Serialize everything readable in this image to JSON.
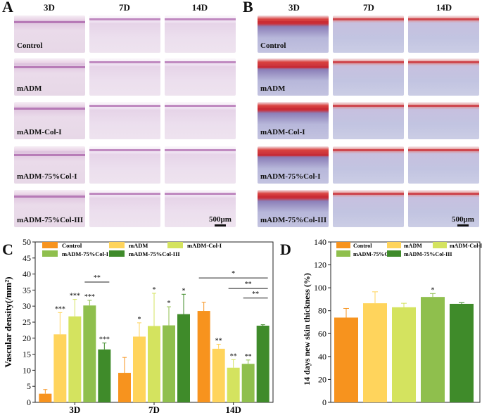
{
  "panels": {
    "a": "A",
    "b": "B",
    "c": "C",
    "d": "D"
  },
  "timepoints": [
    "3D",
    "7D",
    "14D"
  ],
  "groups": [
    "Control",
    "mADM",
    "mADM-Col-I",
    "mADM-75%Col-I",
    "mADM-75%Col-III"
  ],
  "scale_bar": "500μm",
  "colors": {
    "Control": "#f7931e",
    "mADM": "#ffd45c",
    "mADM-Col-I": "#d4e35f",
    "mADM-75%Col-I": "#8fbf4d",
    "mADM-75%Col-III": "#3f8b2a"
  },
  "chart_data": [
    {
      "type": "bar",
      "title": "",
      "xlabel": "",
      "ylabel": "Vascular density(/mm²)",
      "ylim": [
        0,
        50
      ],
      "yticks": [
        0,
        5,
        10,
        15,
        20,
        25,
        30,
        35,
        40,
        45,
        50
      ],
      "categories": [
        "3D",
        "7D",
        "14D"
      ],
      "legend": [
        "Control",
        "mADM",
        "mADM-Col-I",
        "mADM-75%Col-I",
        "mADM-75%Col-III"
      ],
      "series": [
        {
          "name": "Control",
          "values": [
            2.7,
            9.2,
            28.5
          ],
          "errors": [
            1.3,
            4.8,
            2.7
          ],
          "sig": [
            "",
            "",
            ""
          ]
        },
        {
          "name": "mADM",
          "values": [
            21.2,
            20.5,
            16.7
          ],
          "errors": [
            6.8,
            4.3,
            1.4
          ],
          "sig": [
            "***",
            "*",
            "**"
          ]
        },
        {
          "name": "mADM-Col-I",
          "values": [
            26.8,
            23.8,
            10.8
          ],
          "errors": [
            5.3,
            10.2,
            2.5
          ],
          "sig": [
            "***",
            "*",
            "**"
          ]
        },
        {
          "name": "mADM-75%Col-I",
          "values": [
            30.2,
            24.0,
            12.0
          ],
          "errors": [
            1.6,
            5.8,
            1.2
          ],
          "sig": [
            "***",
            "*",
            "**"
          ]
        },
        {
          "name": "mADM-75%Col-III",
          "values": [
            16.5,
            27.5,
            23.9
          ],
          "errors": [
            2.0,
            6.2,
            0.3
          ],
          "sig": [
            "***",
            "*",
            ""
          ]
        }
      ],
      "brackets": [
        {
          "text": "**",
          "category": "3D",
          "from": "mADM-75%Col-I",
          "to": "mADM-75%Col-III",
          "y": 37.5
        },
        {
          "text": "*",
          "category": "14D",
          "from": "Control",
          "to": "mADM-75%Col-III",
          "y": 38.8
        },
        {
          "text": "**",
          "category": "14D",
          "from": "mADM-Col-I",
          "to": "mADM-75%Col-III",
          "y": 35.5
        },
        {
          "text": "**",
          "category": "14D",
          "from": "mADM-75%Col-I",
          "to": "mADM-75%Col-III",
          "y": 32.5
        }
      ]
    },
    {
      "type": "bar",
      "title": "",
      "xlabel": "",
      "ylabel": "14 days new skin thickness (%)",
      "ylim": [
        0,
        140
      ],
      "yticks": [
        0,
        20,
        40,
        60,
        80,
        100,
        120,
        140
      ],
      "categories": [
        "Control",
        "mADM",
        "mADM-Col-I",
        "mADM-75%Col-I",
        "mADM-75%Col-III"
      ],
      "legend": [
        "Control",
        "mADM",
        "mADM-Col-I",
        "mADM-75%Col-I",
        "mADM-75%Col-III"
      ],
      "values": [
        74,
        86.5,
        83,
        92,
        86
      ],
      "errors": [
        8,
        10,
        3.5,
        3,
        1
      ],
      "sig": [
        "",
        "",
        "",
        "*",
        ""
      ]
    }
  ]
}
